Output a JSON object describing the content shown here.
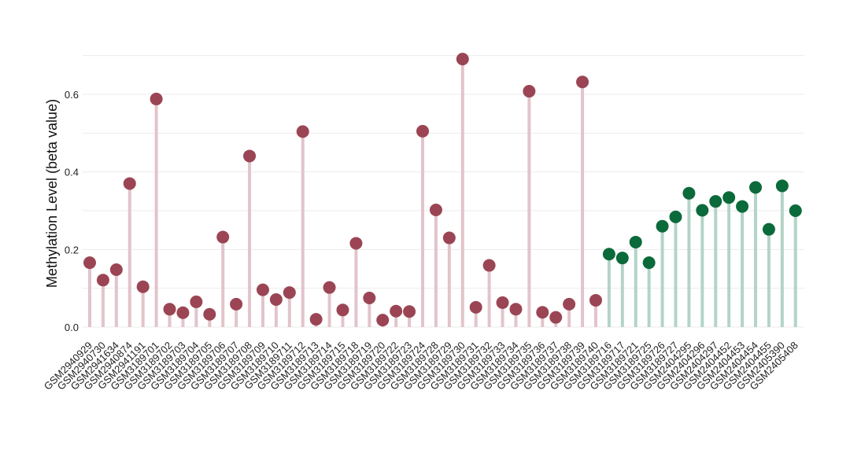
{
  "chart_data": {
    "type": "lollipop",
    "title": "",
    "xlabel": "",
    "ylabel": "Methylation Level (beta value)",
    "ylim": [
      0,
      0.7
    ],
    "yticks": [
      0.0,
      0.2,
      0.4,
      0.6
    ],
    "ytick_labels": [
      "0.0",
      "0.2",
      "0.4",
      "0.6"
    ],
    "grid": true,
    "legend": "none",
    "colors": {
      "groupA_point": "#9b4554",
      "groupA_stem": "#e2c4cb",
      "groupB_point": "#0b6a3a",
      "groupB_stem": "#b3d4c7"
    },
    "series": [
      {
        "group": "A",
        "categories": [
          "GSM2940929",
          "GSM2940730",
          "GSM2941634",
          "GSM2940874",
          "GSM2941191",
          "GSM3189701",
          "GSM3189702",
          "GSM3189703",
          "GSM3189704",
          "GSM3189705",
          "GSM3189706",
          "GSM3189707",
          "GSM3189708",
          "GSM3189709",
          "GSM3189710",
          "GSM3189711",
          "GSM3189712",
          "GSM3189713",
          "GSM3189714",
          "GSM3189715",
          "GSM3189718",
          "GSM3189719",
          "GSM3189720",
          "GSM3189722",
          "GSM3189723",
          "GSM3189724",
          "GSM3189728",
          "GSM3189729",
          "GSM3189730",
          "GSM3189731",
          "GSM3189732",
          "GSM3189733",
          "GSM3189734",
          "GSM3189735",
          "GSM3189736",
          "GSM3189737",
          "GSM3189738",
          "GSM3189739",
          "GSM3189740"
        ],
        "values": [
          0.166,
          0.121,
          0.148,
          0.37,
          0.104,
          0.588,
          0.046,
          0.037,
          0.065,
          0.033,
          0.232,
          0.059,
          0.441,
          0.096,
          0.071,
          0.089,
          0.504,
          0.02,
          0.102,
          0.044,
          0.216,
          0.075,
          0.018,
          0.041,
          0.04,
          0.505,
          0.302,
          0.23,
          0.691,
          0.051,
          0.159,
          0.063,
          0.046,
          0.608,
          0.038,
          0.025,
          0.059,
          0.632,
          0.069
        ]
      },
      {
        "group": "B",
        "categories": [
          "GSM3189716",
          "GSM3189717",
          "GSM3189721",
          "GSM3189725",
          "GSM3189726",
          "GSM3189727",
          "GSM2404295",
          "GSM2404296",
          "GSM2404297",
          "GSM2404452",
          "GSM2404453",
          "GSM2404454",
          "GSM2404455",
          "GSM2405390",
          "GSM2405408"
        ],
        "values": [
          0.188,
          0.178,
          0.219,
          0.166,
          0.26,
          0.284,
          0.345,
          0.301,
          0.324,
          0.334,
          0.311,
          0.36,
          0.252,
          0.364,
          0.3
        ]
      }
    ]
  }
}
